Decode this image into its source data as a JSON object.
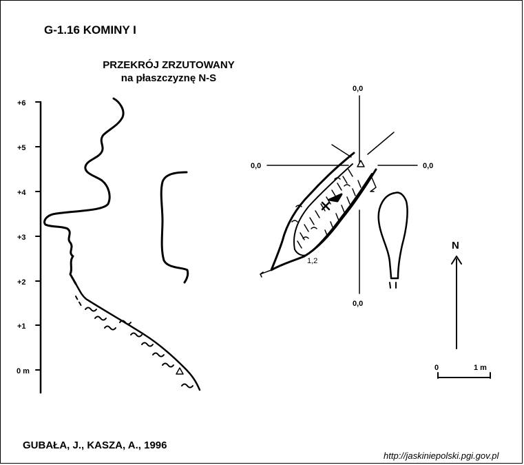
{
  "title": "G-1.16  KOMINY I",
  "section": {
    "heading_line1": "PRZEKRÓJ ZRZUTOWANY",
    "heading_line2": "na płaszczyznę N-S",
    "scale_ticks": [
      "+6",
      "+5",
      "+4",
      "+3",
      "+2",
      "+1",
      "0 m"
    ]
  },
  "plan": {
    "axis_labels": {
      "top": "0,0",
      "left": "0,0",
      "right": "0,0",
      "bottom": "0,0"
    },
    "depth_label": "1,2",
    "north_label": "N",
    "scalebar": {
      "start": "0",
      "end": "1 m"
    }
  },
  "author": "GUBAŁA, J., KASZA, A., 1996",
  "url": "http://jaskiniepolski.pgi.gov.pl"
}
